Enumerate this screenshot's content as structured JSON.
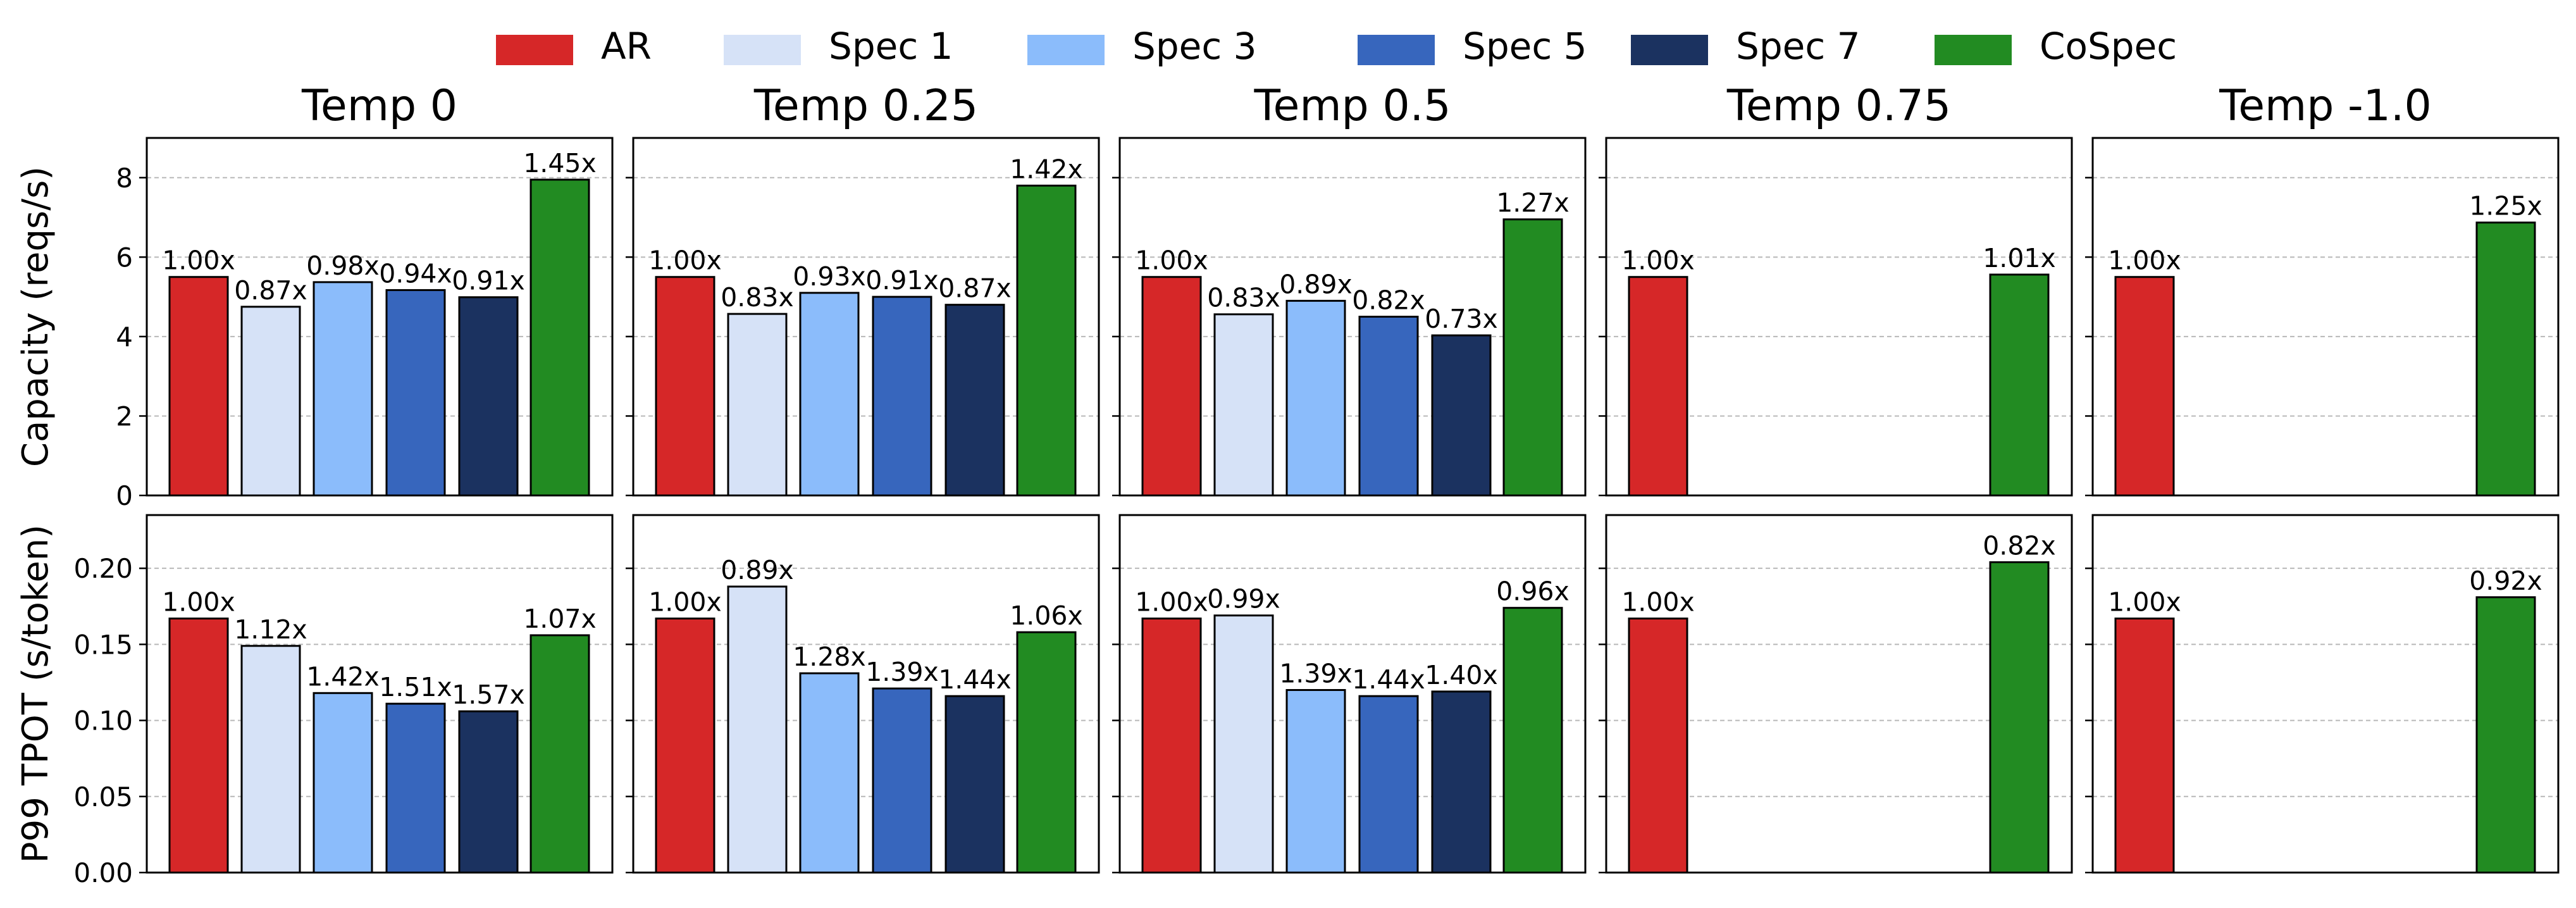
{
  "legend": [
    {
      "label": "AR",
      "color": "#d62728"
    },
    {
      "label": "Spec 1",
      "color": "#d6e2f7"
    },
    {
      "label": "Spec 3",
      "color": "#8bbcfb"
    },
    {
      "label": "Spec 5",
      "color": "#3766bd"
    },
    {
      "label": "Spec 7",
      "color": "#1b3260"
    },
    {
      "label": "CoSpec",
      "color": "#228b22"
    }
  ],
  "chart_data": {
    "type": "bar",
    "legend_position": "top-center",
    "grid": "horizontal dashed",
    "series_names": [
      "AR",
      "Spec 1",
      "Spec 3",
      "Spec 5",
      "Spec 7",
      "CoSpec"
    ],
    "panel_titles": [
      "Temp 0",
      "Temp 0.25",
      "Temp 0.5",
      "Temp 0.75",
      "Temp -1.0"
    ],
    "rows": [
      {
        "ylabel": "Capacity (reqs/s)",
        "ylim": [
          0,
          9
        ],
        "yticks": [
          "0",
          "2",
          "4",
          "6",
          "8"
        ],
        "ytick_values": [
          0,
          2,
          4,
          6,
          8
        ],
        "panels": [
          {
            "values": [
              5.5,
              4.75,
              5.37,
              5.17,
              4.99,
              7.95
            ],
            "labels": [
              "1.00x",
              "0.87x",
              "0.98x",
              "0.94x",
              "0.91x",
              "1.45x"
            ]
          },
          {
            "values": [
              5.5,
              4.57,
              5.1,
              5.0,
              4.8,
              7.8
            ],
            "labels": [
              "1.00x",
              "0.83x",
              "0.93x",
              "0.91x",
              "0.87x",
              "1.42x"
            ]
          },
          {
            "values": [
              5.5,
              4.56,
              4.9,
              4.5,
              4.03,
              6.95
            ],
            "labels": [
              "1.00x",
              "0.83x",
              "0.89x",
              "0.82x",
              "0.73x",
              "1.27x"
            ]
          },
          {
            "values": [
              5.5,
              0,
              0,
              0,
              0,
              5.56
            ],
            "labels": [
              "1.00x",
              "",
              "",
              "",
              "",
              "1.01x"
            ]
          },
          {
            "values": [
              5.5,
              0,
              0,
              0,
              0,
              6.87
            ],
            "labels": [
              "1.00x",
              "",
              "",
              "",
              "",
              "1.25x"
            ]
          }
        ]
      },
      {
        "ylabel": "P99 TPOT (s/token)",
        "ylim": [
          0,
          0.235
        ],
        "yticks": [
          "0.00",
          "0.05",
          "0.10",
          "0.15",
          "0.20"
        ],
        "ytick_values": [
          0,
          0.05,
          0.1,
          0.15,
          0.2
        ],
        "panels": [
          {
            "values": [
              0.167,
              0.149,
              0.118,
              0.111,
              0.106,
              0.156
            ],
            "labels": [
              "1.00x",
              "1.12x",
              "1.42x",
              "1.51x",
              "1.57x",
              "1.07x"
            ]
          },
          {
            "values": [
              0.167,
              0.188,
              0.131,
              0.121,
              0.116,
              0.158
            ],
            "labels": [
              "1.00x",
              "0.89x",
              "1.28x",
              "1.39x",
              "1.44x",
              "1.06x"
            ]
          },
          {
            "values": [
              0.167,
              0.169,
              0.12,
              0.116,
              0.119,
              0.174
            ],
            "labels": [
              "1.00x",
              "0.99x",
              "1.39x",
              "1.44x",
              "1.40x",
              "0.96x"
            ]
          },
          {
            "values": [
              0.167,
              0,
              0,
              0,
              0,
              0.204
            ],
            "labels": [
              "1.00x",
              "",
              "",
              "",
              "",
              "0.82x"
            ]
          },
          {
            "values": [
              0.167,
              0,
              0,
              0,
              0,
              0.181
            ],
            "labels": [
              "1.00x",
              "",
              "",
              "",
              "",
              "0.92x"
            ]
          }
        ]
      }
    ]
  }
}
